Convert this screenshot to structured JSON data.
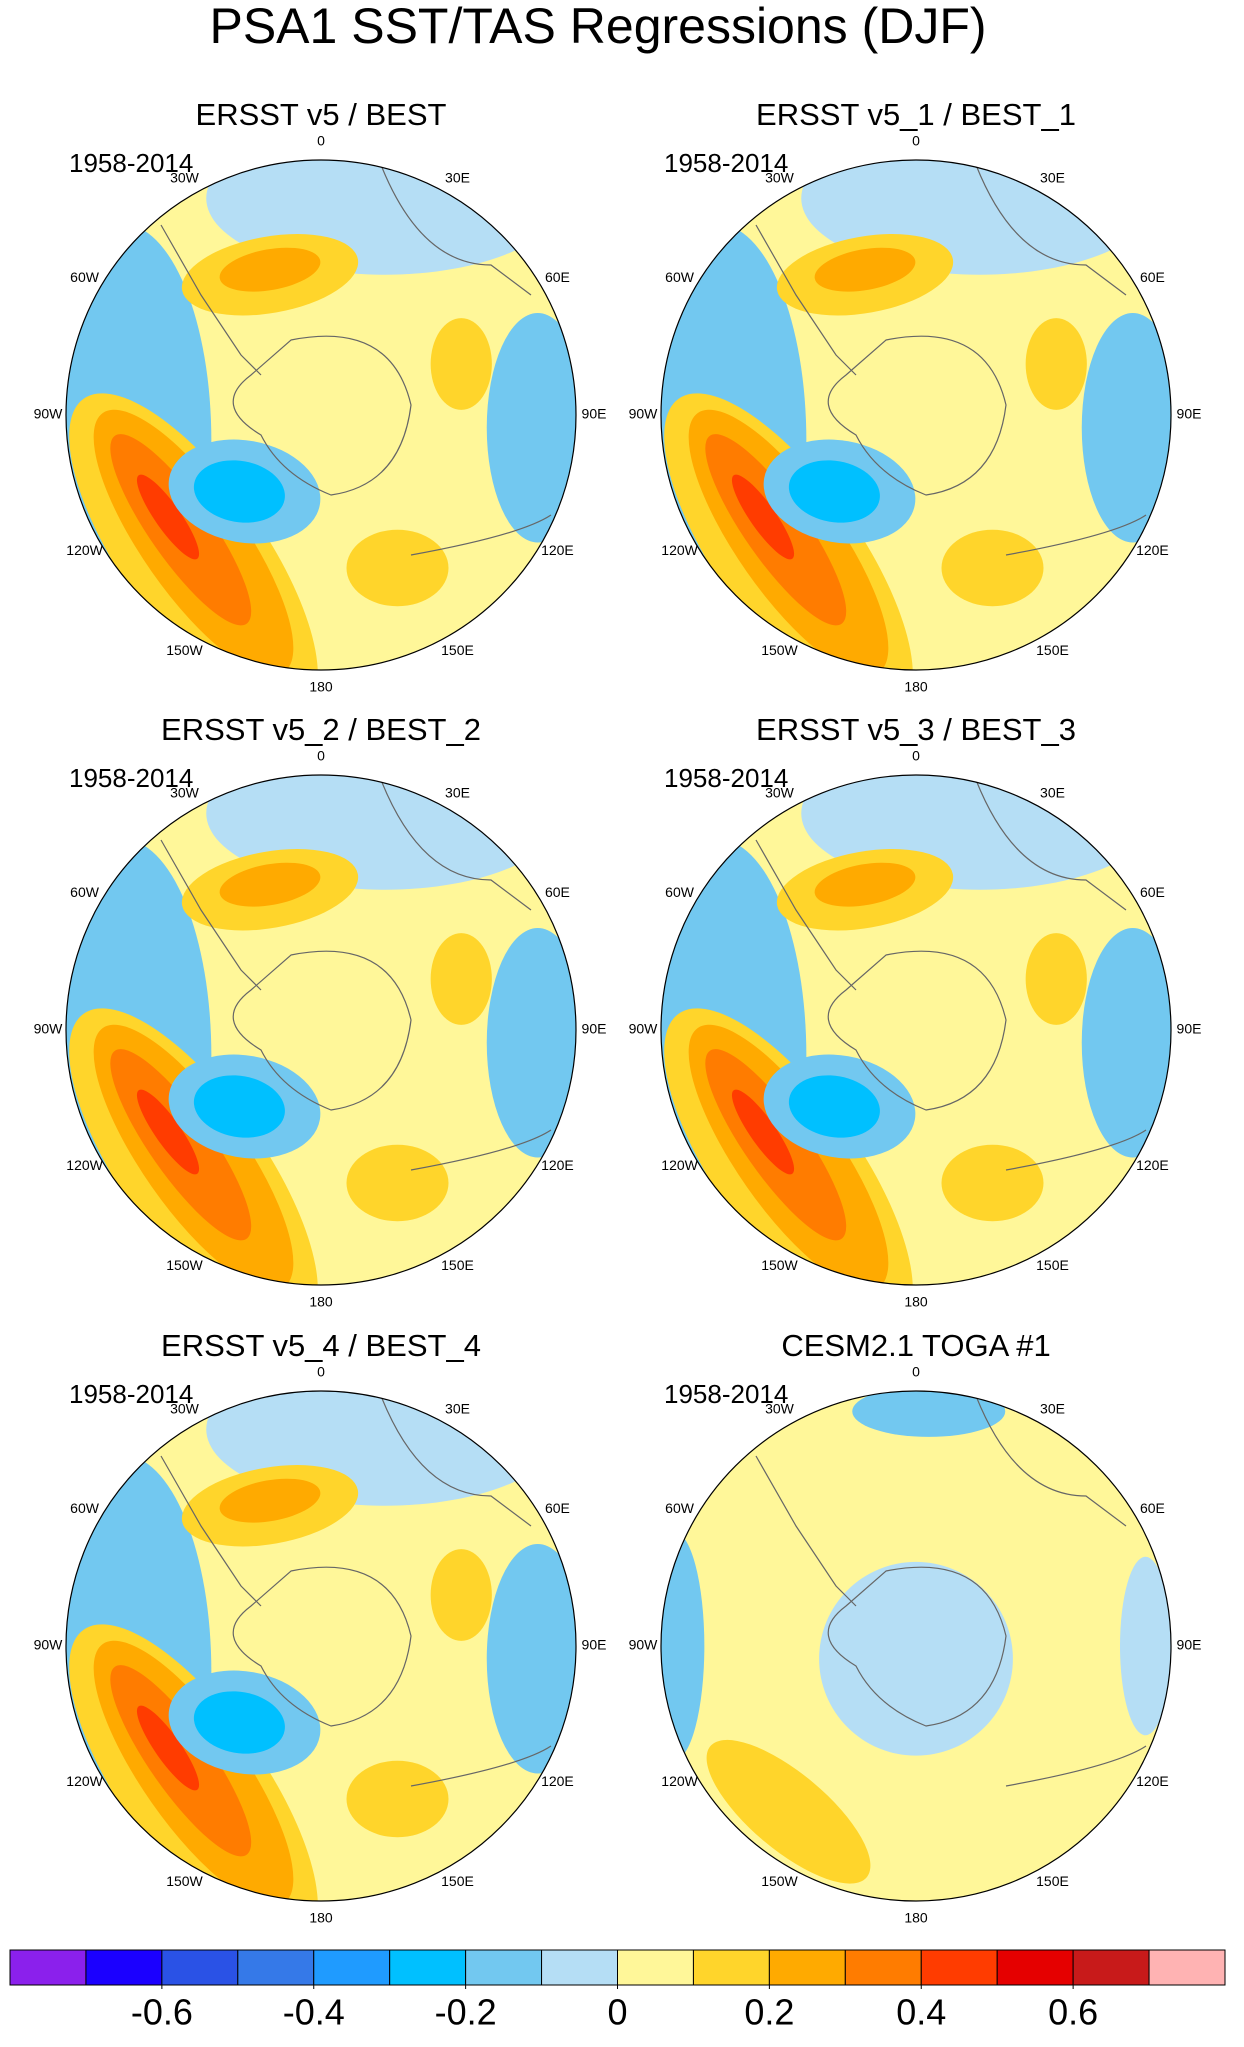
{
  "title": "PSA1 SST/TAS Regressions (DJF)",
  "longitude_labels": [
    "0",
    "30E",
    "60E",
    "90E",
    "120E",
    "150E",
    "180",
    "150W",
    "120W",
    "90W",
    "60W",
    "30W"
  ],
  "panels": [
    {
      "title": "ERSST v5 / BEST",
      "period": "1958-2014"
    },
    {
      "title": "ERSST v5_1 / BEST_1",
      "period": "1958-2014"
    },
    {
      "title": "ERSST v5_2 / BEST_2",
      "period": "1958-2014"
    },
    {
      "title": "ERSST v5_3 / BEST_3",
      "period": "1958-2014"
    },
    {
      "title": "ERSST v5_4 / BEST_4",
      "period": "1958-2014"
    },
    {
      "title": "CESM2.1 TOGA #1",
      "period": "1958-2014"
    }
  ],
  "colorbar": {
    "colors": [
      "#8b20ec",
      "#1b00ff",
      "#2a52e6",
      "#3579e8",
      "#1f9bff",
      "#00c0ff",
      "#72c8f0",
      "#b5def5",
      "#fff799",
      "#ffd52b",
      "#ffaa00",
      "#ff7c00",
      "#ff3c00",
      "#e50000",
      "#c81a1a",
      "#ffb3b3"
    ],
    "levels": [
      -0.7,
      -0.6,
      -0.5,
      -0.4,
      -0.3,
      -0.2,
      -0.1,
      0,
      0.1,
      0.2,
      0.3,
      0.4,
      0.5,
      0.6,
      0.7
    ],
    "ticks": [
      -0.6,
      -0.4,
      -0.2,
      0,
      0.2,
      0.4,
      0.6
    ]
  }
}
